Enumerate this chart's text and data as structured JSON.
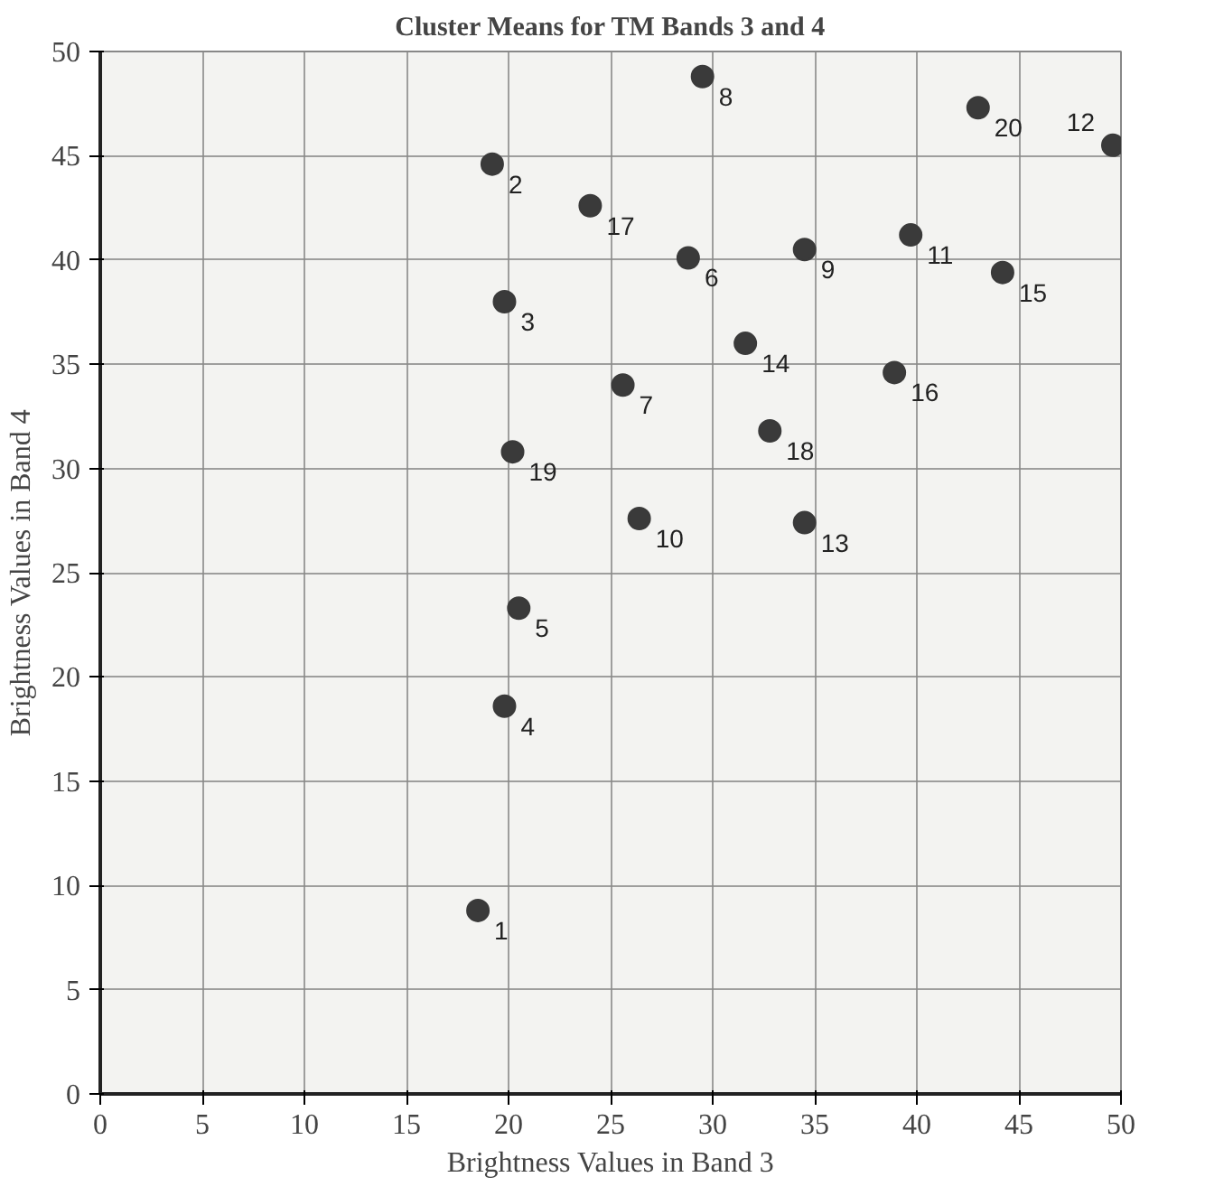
{
  "chart_data": {
    "type": "scatter",
    "title": "Cluster Means for TM Bands 3 and 4",
    "xlabel": "Brightness Values in Band 3",
    "ylabel": "Brightness Values in Band 4",
    "series": [
      {
        "name": "1",
        "color": "#3a3a3a",
        "x": [
          18.5
        ],
        "values": [
          8.8
        ]
      },
      {
        "name": "2",
        "color": "#3a3a3a",
        "x": [
          19.2
        ],
        "values": [
          44.6
        ]
      },
      {
        "name": "3",
        "color": "#3a3a3a",
        "x": [
          19.8
        ],
        "values": [
          38.0
        ]
      },
      {
        "name": "4",
        "color": "#3a3a3a",
        "x": [
          19.8
        ],
        "values": [
          18.6
        ]
      },
      {
        "name": "5",
        "color": "#3a3a3a",
        "x": [
          20.5
        ],
        "values": [
          23.3
        ]
      },
      {
        "name": "6",
        "color": "#3a3a3a",
        "x": [
          28.8
        ],
        "values": [
          40.1
        ]
      },
      {
        "name": "7",
        "color": "#3a3a3a",
        "x": [
          25.6
        ],
        "values": [
          34.0
        ]
      },
      {
        "name": "8",
        "color": "#3a3a3a",
        "x": [
          29.5
        ],
        "values": [
          48.8
        ]
      },
      {
        "name": "9",
        "color": "#3a3a3a",
        "x": [
          34.5
        ],
        "values": [
          40.5
        ]
      },
      {
        "name": "10",
        "color": "#3a3a3a",
        "x": [
          26.4
        ],
        "values": [
          27.6
        ]
      },
      {
        "name": "11",
        "color": "#3a3a3a",
        "x": [
          39.7
        ],
        "values": [
          41.2
        ]
      },
      {
        "name": "12",
        "color": "#3a3a3a",
        "x": [
          49.6
        ],
        "values": [
          45.5
        ]
      },
      {
        "name": "13",
        "color": "#3a3a3a",
        "x": [
          34.5
        ],
        "values": [
          27.4
        ]
      },
      {
        "name": "14",
        "color": "#3a3a3a",
        "x": [
          31.6
        ],
        "values": [
          36.0
        ]
      },
      {
        "name": "15",
        "color": "#3a3a3a",
        "x": [
          44.2
        ],
        "values": [
          39.4
        ]
      },
      {
        "name": "16",
        "color": "#3a3a3a",
        "x": [
          38.9
        ],
        "values": [
          34.6
        ]
      },
      {
        "name": "17",
        "color": "#3a3a3a",
        "x": [
          24.0
        ],
        "values": [
          42.6
        ]
      },
      {
        "name": "18",
        "color": "#3a3a3a",
        "x": [
          32.8
        ],
        "values": [
          31.8
        ]
      },
      {
        "name": "19",
        "color": "#3a3a3a",
        "x": [
          20.2
        ],
        "values": [
          30.8
        ]
      },
      {
        "name": "20",
        "color": "#3a3a3a",
        "x": [
          43.0
        ],
        "values": [
          47.3
        ]
      }
    ],
    "marker": "circle",
    "grid": true,
    "xlim": [
      0,
      50
    ],
    "ylim": [
      0,
      50
    ],
    "xticks": [
      0,
      5,
      10,
      15,
      20,
      25,
      30,
      35,
      40,
      45,
      50
    ],
    "yticks": [
      0,
      5,
      10,
      15,
      20,
      25,
      30,
      35,
      40,
      45,
      50
    ]
  }
}
